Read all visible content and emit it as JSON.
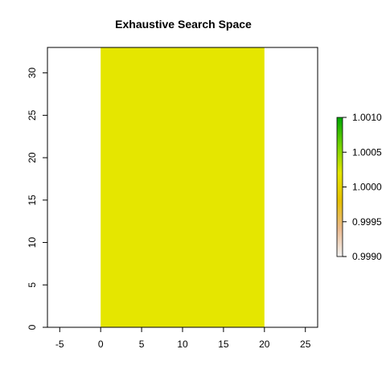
{
  "chart_data": {
    "type": "heatmap",
    "title": "Exhaustive Search Space",
    "xlabel": "",
    "ylabel": "",
    "xlim": [
      -6.5,
      26.5
    ],
    "ylim": [
      0,
      33
    ],
    "x_ticks": [
      -5,
      0,
      5,
      10,
      15,
      20,
      25
    ],
    "y_ticks": [
      0,
      5,
      10,
      15,
      20,
      25,
      30
    ],
    "x_tick_labels": [
      "-5",
      "0",
      "5",
      "10",
      "15",
      "20",
      "25"
    ],
    "y_tick_labels": [
      "0",
      "5",
      "10",
      "15",
      "20",
      "25",
      "30"
    ],
    "cells": [
      {
        "x_range": [
          0,
          20
        ],
        "y_range": [
          0,
          33
        ],
        "value": 1.0,
        "color": "#E5E600"
      }
    ],
    "colorbar": {
      "range": [
        0.999,
        1.001
      ],
      "ticks": [
        0.999,
        0.9995,
        1.0,
        1.0005,
        1.001
      ],
      "tick_labels": [
        "0.9990",
        "0.9995",
        "1.0000",
        "1.0005",
        "1.0010"
      ],
      "colors_low_to_high": [
        "#F2F2F2",
        "#EBB98E",
        "#E6C000",
        "#E5E600",
        "#72D200",
        "#00A600"
      ]
    },
    "grid": false,
    "legend": "right"
  }
}
